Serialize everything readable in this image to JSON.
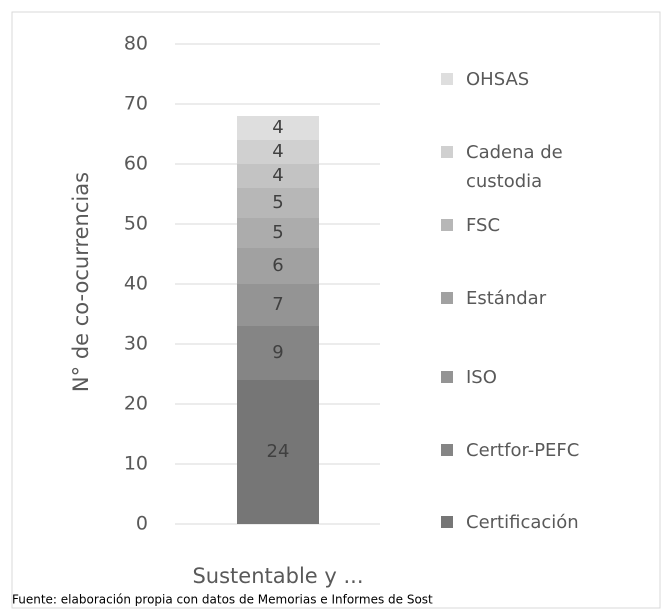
{
  "chart_data": {
    "type": "stacked_bar",
    "y_label": "N° de co-ocurrencias",
    "categories": [
      "Sustentable y ..."
    ],
    "series": [
      {
        "name": "Certificación",
        "color": "#767676",
        "values": [
          24
        ]
      },
      {
        "name": "Certfor-PEFC",
        "color": "#858585",
        "values": [
          9
        ]
      },
      {
        "name": "ISO",
        "color": "#949494",
        "values": [
          7
        ]
      },
      {
        "name": "Estándar",
        "color": "#a1a1a1",
        "values": [
          6
        ]
      },
      {
        "color": "#acacac",
        "values": [
          5
        ]
      },
      {
        "name": "FSC",
        "color": "#b7b7b7",
        "values": [
          5
        ]
      },
      {
        "color": "#c3c3c3",
        "values": [
          4
        ]
      },
      {
        "name": "Cadena de custodia",
        "color": "#d0d0d0",
        "values": [
          4
        ]
      },
      {
        "name": "OHSAS",
        "color": "#dedede",
        "values": [
          4
        ]
      }
    ],
    "ylim": [
      0,
      80
    ],
    "yticks": [
      0,
      10,
      20,
      30,
      40,
      50,
      60,
      70,
      80
    ],
    "grid": true,
    "legend": "right",
    "source": "Fuente: elaboración propia con datos de Memorias e Informes de Sost"
  }
}
